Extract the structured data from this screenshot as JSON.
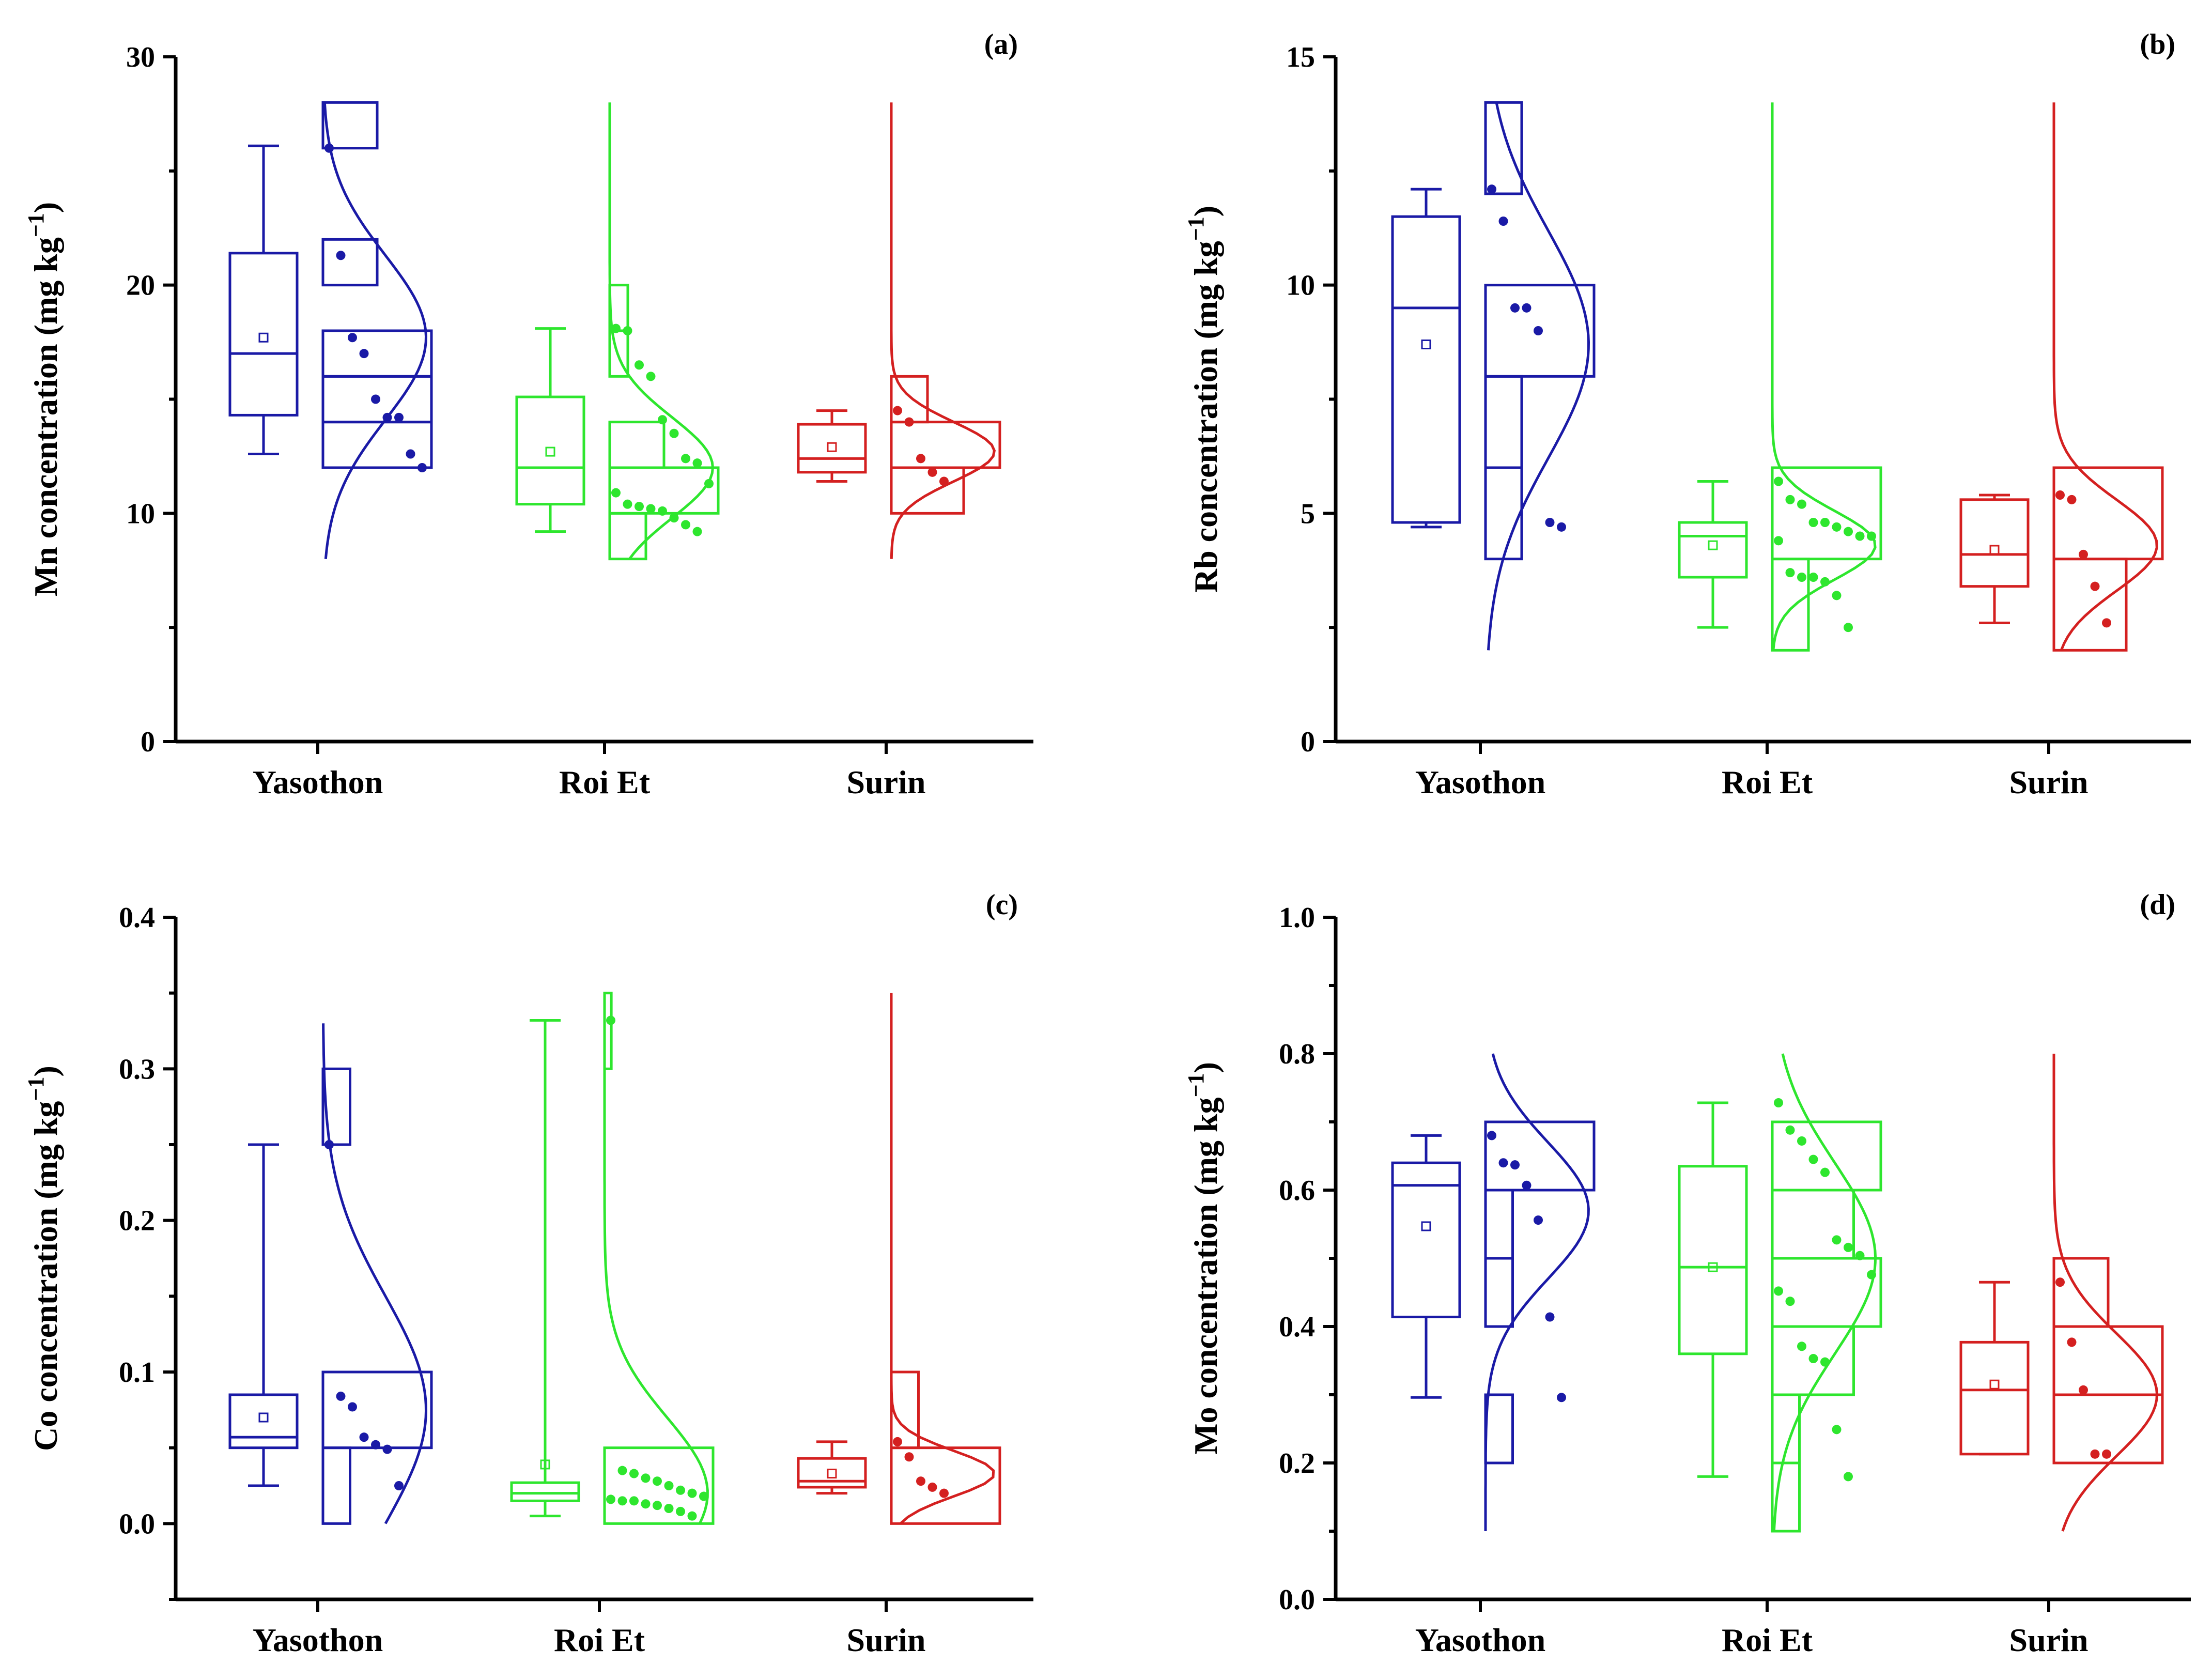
{
  "colors": {
    "Yasothon": "#1a1aa6",
    "Roi Et": "#2ee62e",
    "Surin": "#d42020"
  },
  "chart_data": [
    {
      "type": "box+histogram+distribution",
      "panel_label": "(a)",
      "ylabel_prefix": "Mn concentration (mg kg",
      "ylabel_sup": "−1",
      "ylabel_suffix": ")",
      "ylim": [
        0,
        30
      ],
      "yticks": [
        0,
        10,
        20,
        30
      ],
      "ytick_labels": [
        "0",
        "10",
        "20",
        "30"
      ],
      "categories": [
        "Yasothon",
        "Roi Et",
        "Surin"
      ],
      "series": [
        {
          "name": "Yasothon",
          "box": {
            "min": 12.6,
            "q1": 14.3,
            "median": 17.0,
            "q3": 21.4,
            "max": 26.1,
            "mean": 17.7
          },
          "points": [
            26.0,
            21.3,
            17.7,
            17.0,
            15.0,
            14.2,
            14.2,
            12.6,
            12.0
          ],
          "bins": [
            [
              12,
              14,
              2
            ],
            [
              14,
              16,
              2
            ],
            [
              16,
              18,
              2
            ],
            [
              20,
              22,
              1
            ],
            [
              26,
              28,
              1
            ]
          ],
          "curve": {
            "mu": 17.7,
            "sigma": 3.6,
            "range": [
              8,
              28
            ]
          }
        },
        {
          "name": "Roi Et",
          "box": {
            "min": 9.2,
            "q1": 10.4,
            "median": 12.0,
            "q3": 15.1,
            "max": 18.1,
            "mean": 12.7
          },
          "points": [
            18.1,
            18.0,
            16.5,
            16.0,
            14.1,
            13.5,
            12.4,
            12.2,
            11.3,
            10.9,
            10.4,
            10.3,
            10.2,
            10.1,
            9.8,
            9.5,
            9.2
          ],
          "bins": [
            [
              8,
              10,
              2
            ],
            [
              10,
              12,
              6
            ],
            [
              12,
              14,
              3
            ],
            [
              16,
              18,
              1
            ],
            [
              18,
              20,
              1
            ]
          ],
          "curve": {
            "mu": 12.0,
            "sigma": 2.2,
            "range": [
              8,
              28
            ]
          }
        },
        {
          "name": "Surin",
          "box": {
            "min": 11.4,
            "q1": 11.8,
            "median": 12.4,
            "q3": 13.9,
            "max": 14.5,
            "mean": 12.9
          },
          "points": [
            14.5,
            14.0,
            12.4,
            11.8,
            11.4
          ],
          "bins": [
            [
              10,
              12,
              2
            ],
            [
              12,
              14,
              3
            ],
            [
              14,
              16,
              1
            ]
          ],
          "curve": {
            "mu": 12.7,
            "sigma": 1.3,
            "range": [
              8,
              28
            ]
          }
        }
      ]
    },
    {
      "type": "box+histogram+distribution",
      "panel_label": "(b)",
      "ylabel_prefix": "Rb concentration (mg kg",
      "ylabel_sup": "−1",
      "ylabel_suffix": ")",
      "ylim": [
        0,
        15
      ],
      "yticks": [
        0,
        5,
        10,
        15
      ],
      "ytick_labels": [
        "0",
        "5",
        "10",
        "15"
      ],
      "categories": [
        "Yasothon",
        "Roi Et",
        "Surin"
      ],
      "series": [
        {
          "name": "Yasothon",
          "box": {
            "min": 4.7,
            "q1": 4.8,
            "median": 9.5,
            "q3": 11.5,
            "max": 12.1,
            "mean": 8.7
          },
          "points": [
            12.1,
            11.4,
            9.5,
            9.5,
            9.0,
            4.8,
            4.7
          ],
          "bins": [
            [
              4,
              6,
              1
            ],
            [
              6,
              8,
              1
            ],
            [
              8,
              10,
              3
            ],
            [
              12,
              14,
              1
            ]
          ],
          "curve": {
            "mu": 8.7,
            "sigma": 2.5,
            "range": [
              2,
              14
            ]
          }
        },
        {
          "name": "Roi Et",
          "box": {
            "min": 2.5,
            "q1": 3.6,
            "median": 4.5,
            "q3": 4.8,
            "max": 5.7,
            "mean": 4.3
          },
          "points": [
            5.7,
            5.3,
            5.2,
            4.8,
            4.8,
            4.7,
            4.6,
            4.5,
            4.5,
            4.4,
            3.7,
            3.6,
            3.6,
            3.5,
            3.2,
            2.5
          ],
          "bins": [
            [
              2,
              4,
              2
            ],
            [
              4,
              6,
              6
            ]
          ],
          "curve": {
            "mu": 4.3,
            "sigma": 0.75,
            "range": [
              2,
              14
            ]
          }
        },
        {
          "name": "Surin",
          "box": {
            "min": 2.6,
            "q1": 3.4,
            "median": 4.1,
            "q3": 5.3,
            "max": 5.4,
            "mean": 4.2
          },
          "points": [
            5.4,
            5.3,
            4.1,
            3.4,
            2.6
          ],
          "bins": [
            [
              2,
              4,
              2
            ],
            [
              4,
              6,
              3
            ]
          ],
          "curve": {
            "mu": 4.3,
            "sigma": 1.0,
            "range": [
              2,
              14
            ]
          }
        }
      ]
    },
    {
      "type": "box+histogram+distribution",
      "panel_label": "(c)",
      "ylabel_prefix": "Co concentration (mg kg",
      "ylabel_sup": "−1",
      "ylabel_suffix": ")",
      "ylim": [
        -0.05,
        0.4
      ],
      "yticks": [
        0.0,
        0.1,
        0.2,
        0.3,
        0.4
      ],
      "ytick_labels": [
        "0.0",
        "0.1",
        "0.2",
        "0.3",
        "0.4"
      ],
      "categories": [
        "Yasothon",
        "Roi Et",
        "Surin"
      ],
      "series": [
        {
          "name": "Yasothon",
          "box": {
            "min": 0.025,
            "q1": 0.05,
            "median": 0.057,
            "q3": 0.085,
            "max": 0.25,
            "mean": 0.07
          },
          "points": [
            0.25,
            0.084,
            0.077,
            0.057,
            0.052,
            0.049,
            0.025
          ],
          "bins": [
            [
              0.0,
              0.05,
              1
            ],
            [
              0.05,
              0.1,
              4
            ],
            [
              0.25,
              0.3,
              1
            ]
          ],
          "curve": {
            "mu": 0.075,
            "sigma": 0.075,
            "range": [
              0.0,
              0.33
            ]
          }
        },
        {
          "name": "Roi Et",
          "box": {
            "min": 0.005,
            "q1": 0.015,
            "median": 0.02,
            "q3": 0.027,
            "max": 0.332,
            "mean": 0.039
          },
          "points": [
            0.332,
            0.035,
            0.033,
            0.03,
            0.028,
            0.025,
            0.022,
            0.02,
            0.018,
            0.016,
            0.015,
            0.015,
            0.013,
            0.012,
            0.01,
            0.008,
            0.005
          ],
          "bins": [
            [
              0.0,
              0.05,
              16
            ],
            [
              0.3,
              0.35,
              1
            ]
          ],
          "curve": {
            "mu": 0.02,
            "sigma": 0.05,
            "range": [
              0.0,
              0.35
            ]
          }
        },
        {
          "name": "Surin",
          "box": {
            "min": 0.02,
            "q1": 0.024,
            "median": 0.028,
            "q3": 0.043,
            "max": 0.054,
            "mean": 0.033
          },
          "points": [
            0.054,
            0.044,
            0.028,
            0.024,
            0.02
          ],
          "bins": [
            [
              0.0,
              0.05,
              4
            ],
            [
              0.05,
              0.1,
              1
            ]
          ],
          "curve": {
            "mu": 0.033,
            "sigma": 0.015,
            "range": [
              0.0,
              0.35
            ]
          }
        }
      ]
    },
    {
      "type": "box+histogram+distribution",
      "panel_label": "(d)",
      "ylabel_prefix": "Mo concentration (mg kg",
      "ylabel_sup": "−1",
      "ylabel_suffix": ")",
      "ylim": [
        0.0,
        1.0
      ],
      "yticks": [
        0.0,
        0.2,
        0.4,
        0.6,
        0.8,
        1.0
      ],
      "ytick_labels": [
        "0.0",
        "0.2",
        "0.4",
        "0.6",
        "0.8",
        "1.0"
      ],
      "categories": [
        "Yasothon",
        "Roi Et",
        "Surin"
      ],
      "series": [
        {
          "name": "Yasothon",
          "box": {
            "min": 0.296,
            "q1": 0.414,
            "median": 0.607,
            "q3": 0.64,
            "max": 0.68,
            "mean": 0.547
          },
          "points": [
            0.68,
            0.64,
            0.637,
            0.607,
            0.556,
            0.414,
            0.296
          ],
          "bins": [
            [
              0.2,
              0.3,
              1
            ],
            [
              0.4,
              0.5,
              1
            ],
            [
              0.5,
              0.6,
              1
            ],
            [
              0.6,
              0.7,
              4
            ]
          ],
          "curve": {
            "mu": 0.57,
            "sigma": 0.1,
            "range": [
              0.1,
              0.8
            ]
          }
        },
        {
          "name": "Roi Et",
          "box": {
            "min": 0.18,
            "q1": 0.36,
            "median": 0.487,
            "q3": 0.635,
            "max": 0.728,
            "mean": 0.487
          },
          "points": [
            0.728,
            0.688,
            0.672,
            0.645,
            0.626,
            0.527,
            0.516,
            0.504,
            0.476,
            0.452,
            0.437,
            0.371,
            0.353,
            0.348,
            0.249,
            0.18
          ],
          "bins": [
            [
              0.1,
              0.2,
              1
            ],
            [
              0.2,
              0.3,
              1
            ],
            [
              0.3,
              0.4,
              3
            ],
            [
              0.4,
              0.5,
              4
            ],
            [
              0.5,
              0.6,
              3
            ],
            [
              0.6,
              0.7,
              4
            ]
          ],
          "curve": {
            "mu": 0.5,
            "sigma": 0.14,
            "range": [
              0.1,
              0.8
            ]
          }
        },
        {
          "name": "Surin",
          "box": {
            "min": 0.213,
            "q1": 0.213,
            "median": 0.307,
            "q3": 0.377,
            "max": 0.465,
            "mean": 0.315
          },
          "points": [
            0.465,
            0.377,
            0.307,
            0.213,
            0.213
          ],
          "bins": [
            [
              0.2,
              0.3,
              2
            ],
            [
              0.3,
              0.4,
              2
            ],
            [
              0.4,
              0.5,
              1
            ]
          ],
          "curve": {
            "mu": 0.3,
            "sigma": 0.09,
            "range": [
              0.1,
              0.8
            ]
          }
        }
      ]
    }
  ]
}
